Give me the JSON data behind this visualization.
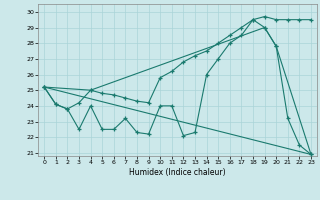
{
  "xlabel": "Humidex (Indice chaleur)",
  "background_color": "#cce8ea",
  "grid_color": "#aad4d8",
  "line_color": "#1a7a6e",
  "xlim": [
    -0.5,
    23.5
  ],
  "ylim": [
    20.8,
    30.5
  ],
  "yticks": [
    21,
    22,
    23,
    24,
    25,
    26,
    27,
    28,
    29,
    30
  ],
  "xticks": [
    0,
    1,
    2,
    3,
    4,
    5,
    6,
    7,
    8,
    9,
    10,
    11,
    12,
    13,
    14,
    15,
    16,
    17,
    18,
    19,
    20,
    21,
    22,
    23
  ],
  "series": [
    {
      "x": [
        0,
        1,
        2,
        3,
        4,
        5,
        6,
        7,
        8,
        9,
        10,
        11,
        12,
        13,
        14,
        15,
        16,
        17,
        18,
        19,
        20,
        21,
        22,
        23
      ],
      "y": [
        25.2,
        24.1,
        23.8,
        22.5,
        24.0,
        22.5,
        22.5,
        23.2,
        22.3,
        22.2,
        24.0,
        24.0,
        22.1,
        22.3,
        26.0,
        27.0,
        28.0,
        28.5,
        29.5,
        29.0,
        27.8,
        23.2,
        21.5,
        20.9
      ],
      "marker": true
    },
    {
      "x": [
        0,
        1,
        2,
        3,
        4,
        5,
        6,
        7,
        8,
        9,
        10,
        11,
        12,
        13,
        14,
        15,
        16,
        17,
        18,
        19,
        20,
        21,
        22,
        23
      ],
      "y": [
        25.2,
        24.1,
        23.8,
        24.2,
        25.0,
        24.8,
        24.7,
        24.5,
        24.3,
        24.2,
        25.8,
        26.2,
        26.8,
        27.2,
        27.5,
        28.0,
        28.5,
        29.0,
        29.5,
        29.7,
        29.5,
        29.5,
        29.5,
        29.5
      ],
      "marker": true
    },
    {
      "x": [
        0,
        4,
        19,
        20,
        23
      ],
      "y": [
        25.2,
        25.0,
        29.0,
        27.8,
        20.9
      ],
      "marker": true
    },
    {
      "x": [
        0,
        23
      ],
      "y": [
        25.2,
        20.9
      ],
      "marker": false
    }
  ]
}
